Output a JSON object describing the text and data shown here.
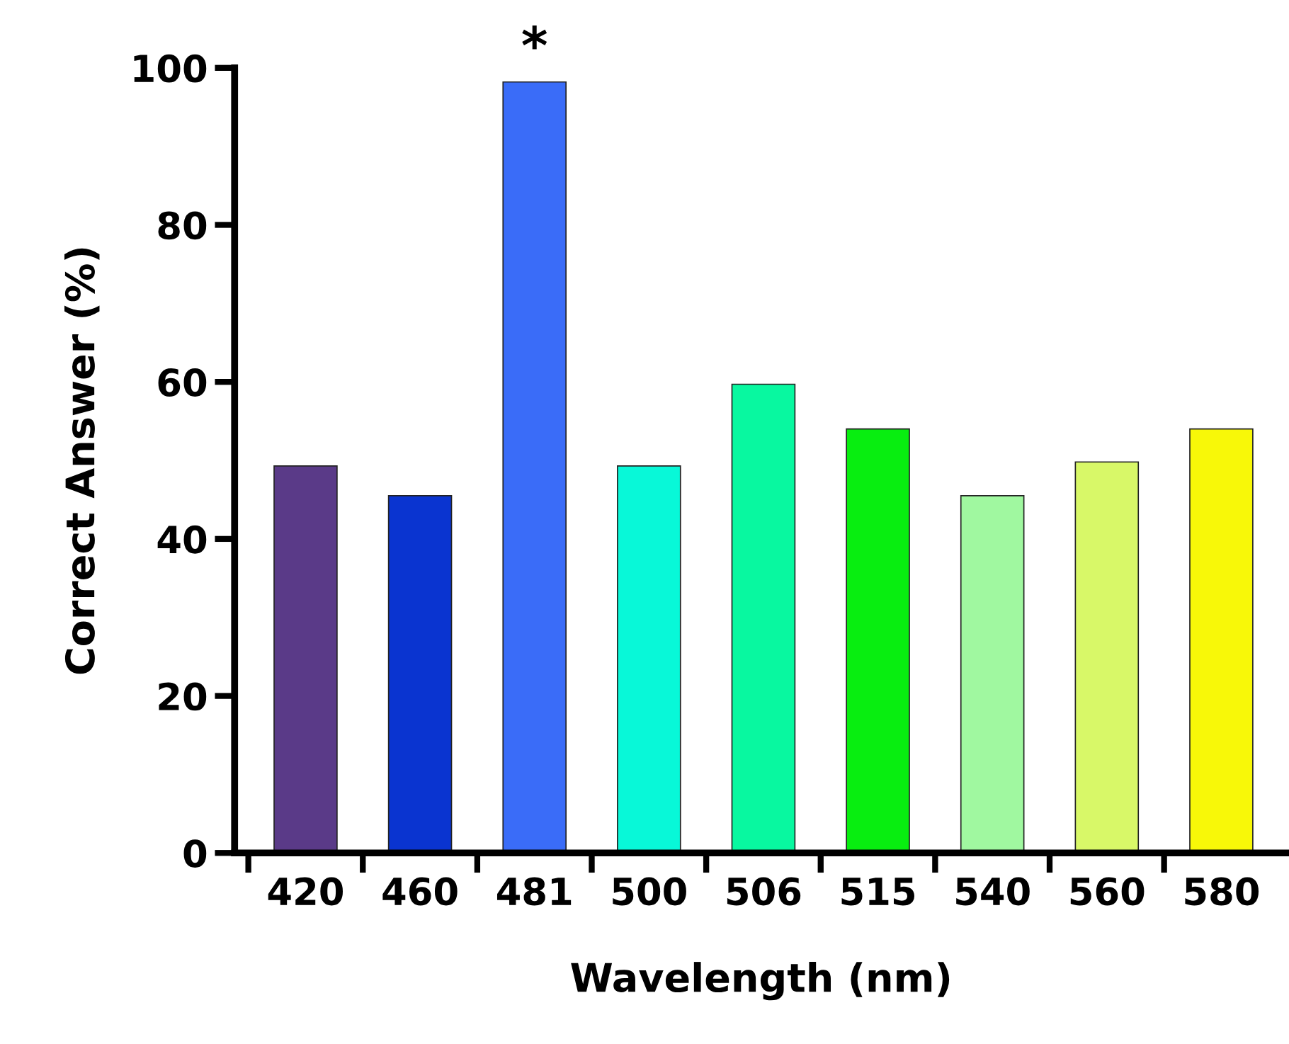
{
  "chart_data": {
    "type": "bar",
    "xlabel": "Wavelength (nm)",
    "ylabel": "Correct Answer (%)",
    "categories": [
      "420",
      "460",
      "481",
      "500",
      "506",
      "515",
      "540",
      "560",
      "580"
    ],
    "values": [
      49.3,
      45.5,
      98.2,
      49.3,
      59.7,
      54,
      45.5,
      49.8,
      54
    ],
    "colors": [
      "#5a3a88",
      "#0a34d0",
      "#3a6cf8",
      "#08f8d8",
      "#08f8a0",
      "#08ee10",
      "#a0f8a0",
      "#d8f868",
      "#f8f808"
    ],
    "ylim": [
      0,
      100
    ],
    "yticks": [
      0,
      20,
      40,
      60,
      80,
      100
    ],
    "grid": false,
    "legend": false,
    "annotations": [
      {
        "text": "*",
        "x": "481",
        "y": 98.2
      }
    ]
  }
}
